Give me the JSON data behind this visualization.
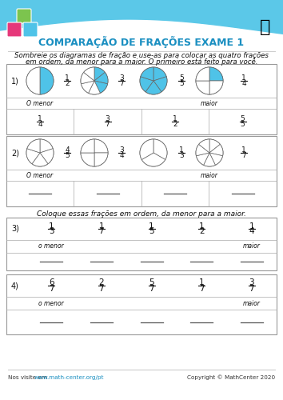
{
  "title": "COMPARAÇÃO DE FRAÇÕES EXAME 1",
  "title_color": "#1a8fc1",
  "instruction1": "Sombreie os diagramas de fração e use-as para colocar as quatro frações",
  "instruction2": "em ordem, da menor para a maior. O primeiro está feito para você.",
  "instruction3": "Coloque essas frações em ordem, da menor para a maior.",
  "footer_left": "Nos visite em ",
  "footer_url": "www.math-center.org/pt",
  "footer_right": "Copyright © MathCenter 2020",
  "bg_color": "#ffffff",
  "wave_color": "#5bc8e8",
  "section1_fractions": [
    [
      "1",
      "2"
    ],
    [
      "3",
      "7"
    ],
    [
      "5",
      "5"
    ],
    [
      "1",
      "4"
    ]
  ],
  "section1_slices": [
    2,
    7,
    5,
    4
  ],
  "section1_shaded_slices": [
    1,
    3,
    5,
    1
  ],
  "section1_answer": [
    [
      "1",
      "4"
    ],
    [
      "3",
      "7"
    ],
    [
      "1",
      "2"
    ],
    [
      "5",
      "5"
    ]
  ],
  "section2_fractions": [
    [
      "4",
      "5"
    ],
    [
      "3",
      "4"
    ],
    [
      "1",
      "3"
    ],
    [
      "1",
      "7"
    ]
  ],
  "section2_slices": [
    5,
    4,
    3,
    7
  ],
  "section3_fractions": [
    [
      "1",
      "3"
    ],
    [
      "1",
      "7"
    ],
    [
      "1",
      "5"
    ],
    [
      "1",
      "2"
    ],
    [
      "1",
      "4"
    ]
  ],
  "section3_labels": [
    "o menor",
    "",
    "",
    "",
    "maior"
  ],
  "section4_fractions": [
    [
      "6",
      "7"
    ],
    [
      "2",
      "7"
    ],
    [
      "5",
      "7"
    ],
    [
      "1",
      "7"
    ],
    [
      "3",
      "7"
    ]
  ],
  "section4_labels": [
    "o menor",
    "",
    "",
    "",
    "maior"
  ],
  "cyan_color": "#4fc3e8",
  "die_green": "#7cc44e",
  "die_pink": "#e6387a",
  "die_blue": "#4fc3e8"
}
